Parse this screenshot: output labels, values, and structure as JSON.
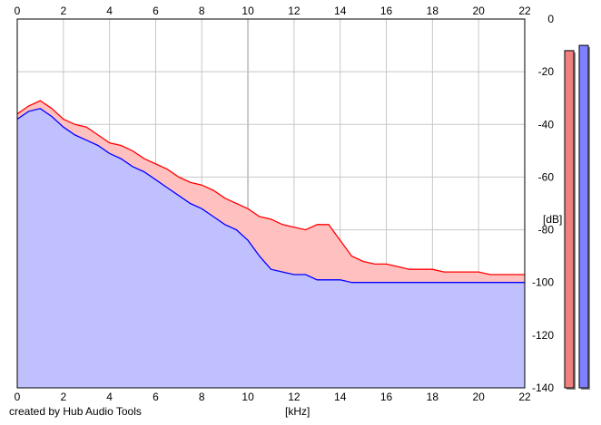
{
  "footer": {
    "credit": "created by Hub Audio Tools"
  },
  "chart_data": {
    "type": "line",
    "title": "",
    "xlabel": "[kHz]",
    "ylabel": "[dB]",
    "xlim": [
      0,
      22
    ],
    "ylim": [
      -140,
      0
    ],
    "x_ticks": [
      0,
      2,
      4,
      6,
      8,
      10,
      12,
      14,
      16,
      18,
      20,
      22
    ],
    "y_ticks": [
      0,
      -20,
      -40,
      -60,
      -80,
      -100,
      -120,
      -140
    ],
    "y_tick_labels": [
      "0",
      "-20",
      "-40",
      "-60",
      "-80",
      "-100",
      "-120",
      "-140"
    ],
    "grid": true,
    "x": [
      0,
      0.5,
      1,
      1.5,
      2,
      2.5,
      3,
      3.5,
      4,
      4.5,
      5,
      5.5,
      6,
      6.5,
      7,
      7.5,
      8,
      8.5,
      9,
      9.5,
      10,
      10.5,
      11,
      11.5,
      12,
      12.5,
      13,
      13.5,
      14,
      14.5,
      15,
      15.5,
      16,
      16.5,
      17,
      17.5,
      18,
      18.5,
      19,
      19.5,
      20,
      20.5,
      21,
      21.5,
      22
    ],
    "series": [
      {
        "color": "#ff0000",
        "values": [
          -36,
          -33,
          -31,
          -34,
          -38,
          -40,
          -41,
          -44,
          -47,
          -48,
          -50,
          -53,
          -55,
          -57,
          -60,
          -62,
          -63,
          -65,
          -68,
          -70,
          -72,
          -75,
          -76,
          -78,
          -79,
          -80,
          -78,
          -78,
          -84,
          -90,
          -92,
          -93,
          -93,
          -94,
          -95,
          -95,
          -95,
          -96,
          -96,
          -96,
          -96,
          -97,
          -97,
          -97,
          -97
        ]
      },
      {
        "color": "#0000ff",
        "values": [
          -38,
          -35,
          -34,
          -37,
          -41,
          -44,
          -46,
          -48,
          -51,
          -53,
          -56,
          -58,
          -61,
          -64,
          -67,
          -70,
          -72,
          -75,
          -78,
          -80,
          -84,
          -90,
          -95,
          -96,
          -97,
          -97,
          -99,
          -99,
          -99,
          -100,
          -100,
          -100,
          -100,
          -100,
          -100,
          -100,
          -100,
          -100,
          -100,
          -100,
          -100,
          -100,
          -100,
          -100,
          -100
        ]
      }
    ],
    "level_meters": [
      {
        "color": "#f08080",
        "top_db": -12
      },
      {
        "color": "#8080ff",
        "top_db": -10
      }
    ],
    "colors": {
      "fill": "#c0c0ff",
      "diff_fill": "#ffc0c0",
      "grid": "#c8c8c8",
      "axes": "#000000",
      "background": "#ffffff"
    }
  }
}
